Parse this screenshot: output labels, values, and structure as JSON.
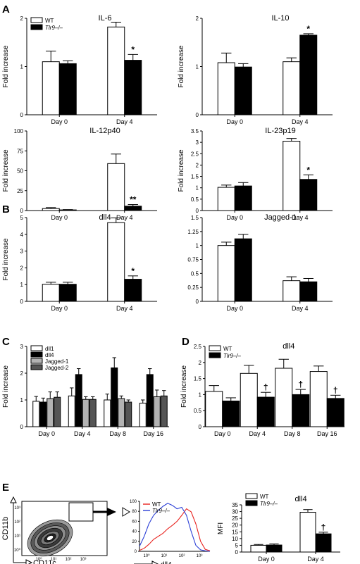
{
  "panels": {
    "A": "A",
    "B": "B",
    "C": "C",
    "D": "D",
    "E": "E"
  },
  "colors": {
    "wt": "#ffffff",
    "ko": "#000000",
    "jagged1": "#b3b3b3",
    "jagged2": "#555555",
    "hist_wt": "#e8231f",
    "hist_ko": "#2b3fd6"
  },
  "chart_data": [
    {
      "id": "il6",
      "type": "bar",
      "title": "IL-6",
      "ylabel": "Fold increase",
      "categories": [
        "Day 0",
        "Day 4"
      ],
      "ylim": [
        0,
        2
      ],
      "yticks": [
        0,
        1,
        2
      ],
      "legend": {
        "placement": "top-left",
        "entries": [
          "WT",
          "Tlr9–/–"
        ]
      },
      "series": [
        {
          "name": "WT",
          "values": [
            1.1,
            1.82
          ],
          "errors": [
            0.22,
            0.1
          ]
        },
        {
          "name": "Tlr9–/–",
          "values": [
            1.06,
            1.13
          ],
          "errors": [
            0.06,
            0.12
          ]
        }
      ],
      "annotations": [
        {
          "series": 1,
          "index": 1,
          "text": "*"
        }
      ]
    },
    {
      "id": "il10",
      "type": "bar",
      "title": "IL-10",
      "ylabel": "Fold increase",
      "categories": [
        "Day 0",
        "Day 4"
      ],
      "ylim": [
        0,
        2
      ],
      "yticks": [
        0,
        1,
        2
      ],
      "series": [
        {
          "name": "WT",
          "values": [
            1.08,
            1.1
          ],
          "errors": [
            0.2,
            0.08
          ]
        },
        {
          "name": "Tlr9–/–",
          "values": [
            0.99,
            1.65
          ],
          "errors": [
            0.07,
            0.03
          ]
        }
      ],
      "annotations": [
        {
          "series": 1,
          "index": 1,
          "text": "*"
        }
      ]
    },
    {
      "id": "il12",
      "type": "bar",
      "title": "IL-12p40",
      "ylabel": "Fold increase",
      "categories": [
        "Day 0",
        "Day 4"
      ],
      "ylim": [
        0,
        100
      ],
      "yticks": [
        0,
        25,
        50,
        75,
        100
      ],
      "series": [
        {
          "name": "WT",
          "values": [
            2.5,
            59
          ],
          "errors": [
            1.2,
            12
          ]
        },
        {
          "name": "Tlr9–/–",
          "values": [
            0.8,
            5.5
          ],
          "errors": [
            0.4,
            2
          ]
        }
      ],
      "annotations": [
        {
          "series": 1,
          "index": 1,
          "text": "**"
        }
      ]
    },
    {
      "id": "il23",
      "type": "bar",
      "title": "IL-23p19",
      "ylabel": "Fold increase",
      "categories": [
        "Day 0",
        "Day 4"
      ],
      "ylim": [
        0,
        3.5
      ],
      "yticks": [
        0,
        0.5,
        1.0,
        1.5,
        2.0,
        2.5,
        3.0,
        3.5
      ],
      "series": [
        {
          "name": "WT",
          "values": [
            1.02,
            3.05
          ],
          "errors": [
            0.1,
            0.12
          ]
        },
        {
          "name": "Tlr9–/–",
          "values": [
            1.08,
            1.37
          ],
          "errors": [
            0.15,
            0.2
          ]
        }
      ],
      "annotations": [
        {
          "series": 1,
          "index": 1,
          "text": "*"
        }
      ]
    },
    {
      "id": "dll4b",
      "type": "bar",
      "title": "dll4",
      "ylabel": "Fold increase",
      "categories": [
        "Day 0",
        "Day 4"
      ],
      "ylim": [
        0,
        5
      ],
      "yticks": [
        0,
        1,
        2,
        3,
        4,
        5
      ],
      "series": [
        {
          "name": "WT",
          "values": [
            1.02,
            4.7
          ],
          "errors": [
            0.12,
            0.28
          ]
        },
        {
          "name": "Tlr9–/–",
          "values": [
            1.02,
            1.32
          ],
          "errors": [
            0.12,
            0.2
          ]
        }
      ],
      "annotations": [
        {
          "series": 1,
          "index": 1,
          "text": "*"
        }
      ]
    },
    {
      "id": "jagged",
      "type": "bar",
      "title": "Jagged-1",
      "ylabel": "",
      "categories": [
        "Day 0",
        "Day 4"
      ],
      "ylim": [
        0,
        1.5
      ],
      "yticks": [
        0,
        0.25,
        0.5,
        0.75,
        1.0,
        1.25,
        1.5
      ],
      "series": [
        {
          "name": "WT",
          "values": [
            1.0,
            0.37
          ],
          "errors": [
            0.06,
            0.07
          ]
        },
        {
          "name": "Tlr9–/–",
          "values": [
            1.12,
            0.35
          ],
          "errors": [
            0.08,
            0.06
          ]
        }
      ],
      "annotations": []
    },
    {
      "id": "notch",
      "type": "bar",
      "title": "",
      "ylabel": "Fold increase",
      "categories": [
        "Day 0",
        "Day 4",
        "Day 8",
        "Day 16"
      ],
      "ylim": [
        0,
        3
      ],
      "yticks": [
        0,
        1,
        2,
        3
      ],
      "legend": {
        "placement": "top-left",
        "entries": [
          "dll1",
          "dll4",
          "Jagged-1",
          "Jagged-2"
        ]
      },
      "series": [
        {
          "name": "dll1",
          "values": [
            0.95,
            1.15,
            1.0,
            0.88
          ],
          "errors": [
            0.18,
            0.3,
            0.22,
            0.12
          ]
        },
        {
          "name": "dll4",
          "values": [
            0.92,
            1.95,
            2.2,
            1.95
          ],
          "errors": [
            0.15,
            0.22,
            0.38,
            0.22
          ]
        },
        {
          "name": "Jagged-1",
          "values": [
            1.05,
            1.02,
            1.05,
            1.12
          ],
          "errors": [
            0.25,
            0.1,
            0.1,
            0.25
          ]
        },
        {
          "name": "Jagged-2",
          "values": [
            1.1,
            1.02,
            0.92,
            1.15
          ],
          "errors": [
            0.2,
            0.1,
            0.08,
            0.2
          ]
        }
      ],
      "annotations": []
    },
    {
      "id": "dll4d",
      "type": "bar",
      "title": "dll4",
      "ylabel": "Fold increase",
      "categories": [
        "Day 0",
        "Day 4",
        "Day 8",
        "Day 16"
      ],
      "ylim": [
        0,
        2.5
      ],
      "yticks": [
        0,
        0.5,
        1.0,
        1.5,
        2.0,
        2.5
      ],
      "legend": {
        "placement": "top-left",
        "entries": [
          "WT",
          "Tlr9–/–"
        ]
      },
      "series": [
        {
          "name": "WT",
          "values": [
            1.1,
            1.66,
            1.82,
            1.72
          ],
          "errors": [
            0.18,
            0.25,
            0.28,
            0.17
          ]
        },
        {
          "name": "Tlr9–/–",
          "values": [
            0.8,
            0.92,
            1.0,
            0.88
          ],
          "errors": [
            0.1,
            0.15,
            0.16,
            0.1
          ]
        }
      ],
      "annotations": [
        {
          "series": 1,
          "index": 1,
          "text": "†"
        },
        {
          "series": 1,
          "index": 2,
          "text": "†"
        },
        {
          "series": 1,
          "index": 3,
          "text": "†"
        }
      ]
    },
    {
      "id": "mfi",
      "type": "bar",
      "title": "dll4",
      "ylabel": "MFI",
      "categories": [
        "Day 0",
        "Day 4"
      ],
      "ylim": [
        0,
        35
      ],
      "yticks": [
        0,
        5,
        10,
        15,
        20,
        25,
        30,
        35
      ],
      "legend": {
        "placement": "top-left",
        "entries": [
          "WT",
          "Tlr9–/–"
        ]
      },
      "series": [
        {
          "name": "WT",
          "values": [
            5.0,
            29.5
          ],
          "errors": [
            0.6,
            2.0
          ]
        },
        {
          "name": "Tlr9–/–",
          "values": [
            5.2,
            13.5
          ],
          "errors": [
            0.8,
            1.2
          ]
        }
      ],
      "annotations": [
        {
          "series": 1,
          "index": 1,
          "text": "†"
        }
      ]
    }
  ],
  "flow": {
    "contour": {
      "xlabel": "CD11c",
      "ylabel": "CD11b",
      "xticks": [
        "10⁰",
        "10¹",
        "10²",
        "10³"
      ],
      "yticks": [
        "10⁰",
        "10¹",
        "10²",
        "10³"
      ]
    },
    "histogram": {
      "type": "line",
      "xlabel": "dll4",
      "ylim": [
        0,
        100
      ],
      "yticks": [
        0,
        20,
        40,
        60,
        80,
        100
      ],
      "xticks": [
        "10⁰",
        "10¹",
        "10²",
        "10³"
      ],
      "legend": [
        "WT",
        "Tlr9–/–"
      ],
      "series": [
        {
          "name": "WT",
          "x": [
            0.0,
            0.2,
            0.4,
            0.6,
            0.8,
            1.0,
            1.2,
            1.4,
            1.6,
            1.8,
            2.0,
            2.2,
            2.4,
            2.6,
            2.8,
            3.0
          ],
          "y": [
            2,
            6,
            14,
            24,
            30,
            36,
            45,
            52,
            60,
            72,
            85,
            79,
            55,
            20,
            4,
            1
          ]
        },
        {
          "name": "Tlr9–/–",
          "x": [
            0.0,
            0.2,
            0.4,
            0.6,
            0.8,
            1.0,
            1.2,
            1.4,
            1.6,
            1.8,
            2.0,
            2.2,
            2.4,
            2.6,
            2.8,
            3.0
          ],
          "y": [
            10,
            30,
            55,
            72,
            82,
            90,
            96,
            92,
            85,
            88,
            72,
            40,
            12,
            3,
            1,
            0
          ]
        }
      ]
    }
  }
}
